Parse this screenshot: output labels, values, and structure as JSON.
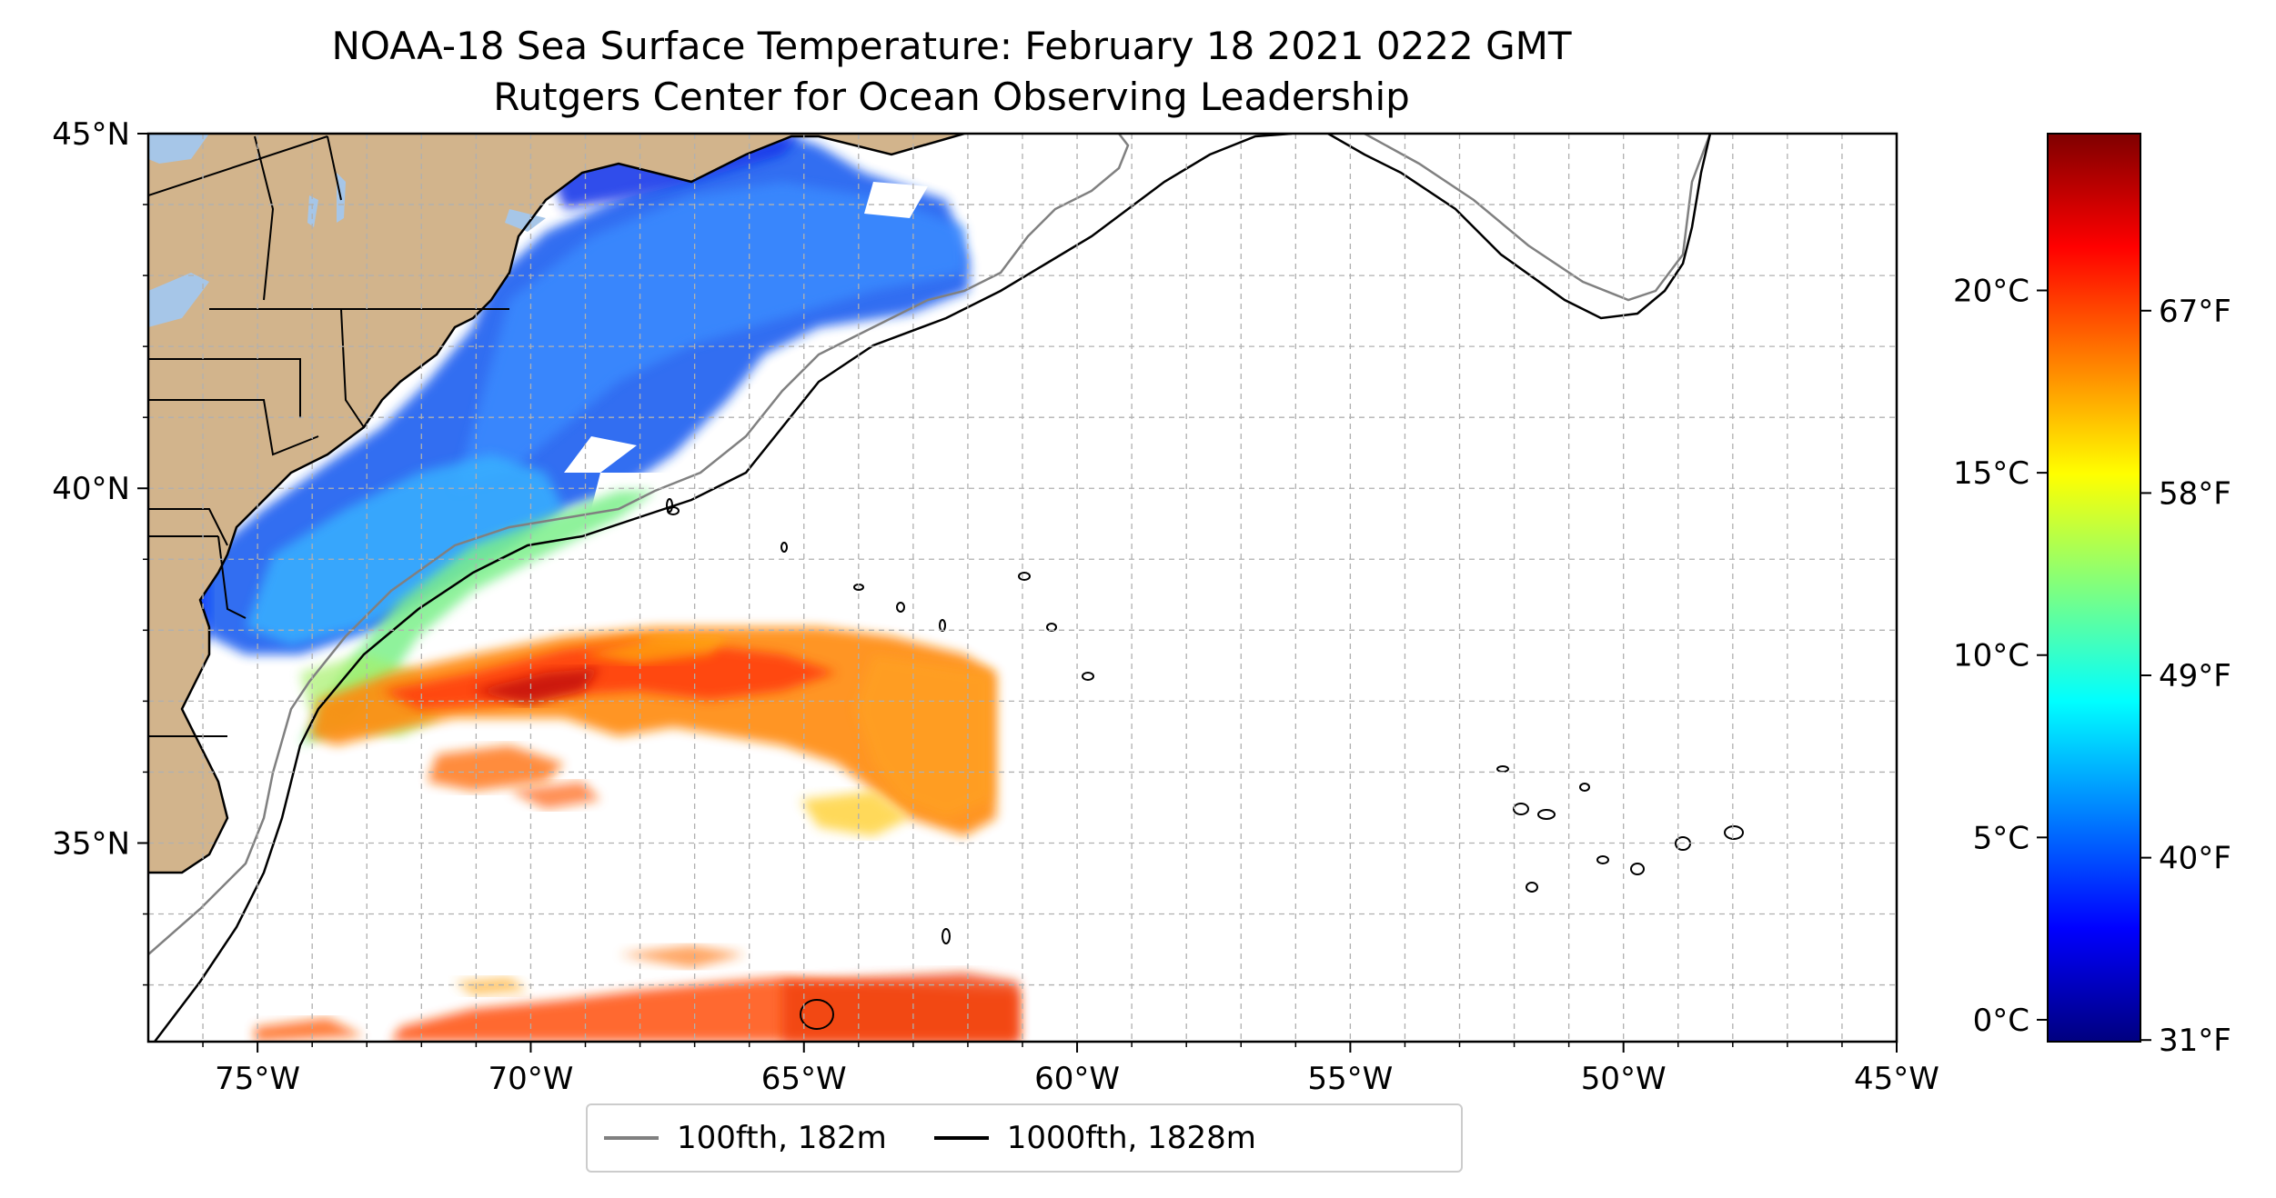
{
  "title": {
    "line1": "NOAA-18 Sea Surface Temperature: February 18 2021 0222 GMT",
    "line2": "Rutgers Center for Ocean Observing Leadership"
  },
  "map": {
    "lon_range": [
      -77,
      -45
    ],
    "lat_range": [
      32.2,
      45
    ],
    "x_tick_labels": [
      "75°W",
      "70°W",
      "65°W",
      "60°W",
      "55°W",
      "50°W",
      "45°W"
    ],
    "y_tick_labels": [
      "45°N",
      "40°N",
      "35°N"
    ],
    "gridlines": true,
    "land_color": "#d2b48c",
    "lakes_color": "#a6c6e8"
  },
  "legend": {
    "items": [
      {
        "label": "100fth, 182m",
        "color": "#808080"
      },
      {
        "label": "1000fth, 1828m",
        "color": "#000000"
      }
    ]
  },
  "colorbar": {
    "colormap": "jet",
    "celsius_labels": [
      "20°C",
      "15°C",
      "10°C",
      "5°C",
      "0°C"
    ],
    "fahrenheit_labels": [
      "67°F",
      "58°F",
      "49°F",
      "40°F",
      "31°F"
    ],
    "colors": [
      "#00007f",
      "#0000ff",
      "#007fff",
      "#00ffff",
      "#7fff7f",
      "#ffff00",
      "#ff7f00",
      "#ff0000",
      "#7f0000"
    ]
  }
}
